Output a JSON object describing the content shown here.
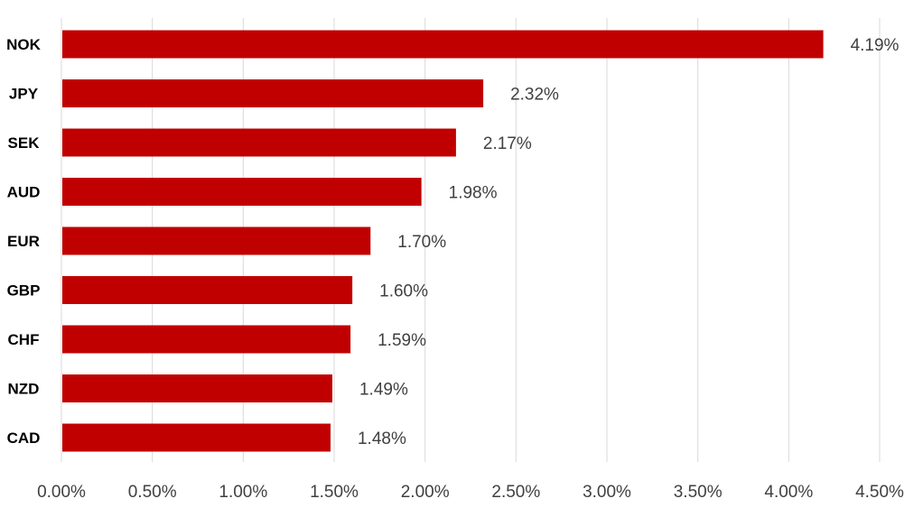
{
  "chart_data": {
    "type": "bar",
    "orientation": "horizontal",
    "title": "",
    "xlabel": "",
    "ylabel": "",
    "categories": [
      "NOK",
      "JPY",
      "SEK",
      "AUD",
      "EUR",
      "GBP",
      "CHF",
      "NZD",
      "CAD"
    ],
    "values": [
      4.19,
      2.32,
      2.17,
      1.98,
      1.7,
      1.6,
      1.59,
      1.49,
      1.48
    ],
    "value_labels": [
      "4.19%",
      "2.32%",
      "2.17%",
      "1.98%",
      "1.70%",
      "1.60%",
      "1.59%",
      "1.49%",
      "1.48%"
    ],
    "value_unit": "%",
    "xlim": [
      0,
      4.5
    ],
    "x_ticks": [
      "0.00%",
      "0.50%",
      "1.00%",
      "1.50%",
      "2.00%",
      "2.50%",
      "3.00%",
      "3.50%",
      "4.00%",
      "4.50%"
    ],
    "grid": "vertical",
    "legend": "none",
    "bar_color": "#c00000"
  }
}
